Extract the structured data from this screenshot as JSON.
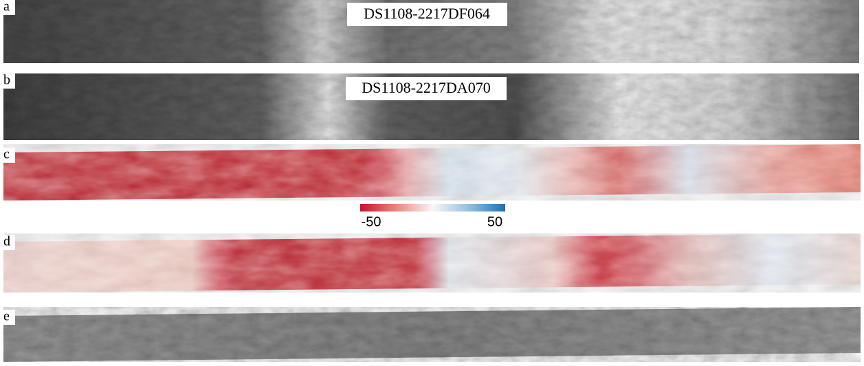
{
  "panels": [
    {
      "label": "a",
      "title": "DS1108-2217DF064"
    },
    {
      "label": "b",
      "title": "DS1108-2217DA070"
    },
    {
      "label": "c"
    },
    {
      "label": "d"
    },
    {
      "label": "e"
    }
  ],
  "colorbar": {
    "min": -50,
    "max": 50
  }
}
